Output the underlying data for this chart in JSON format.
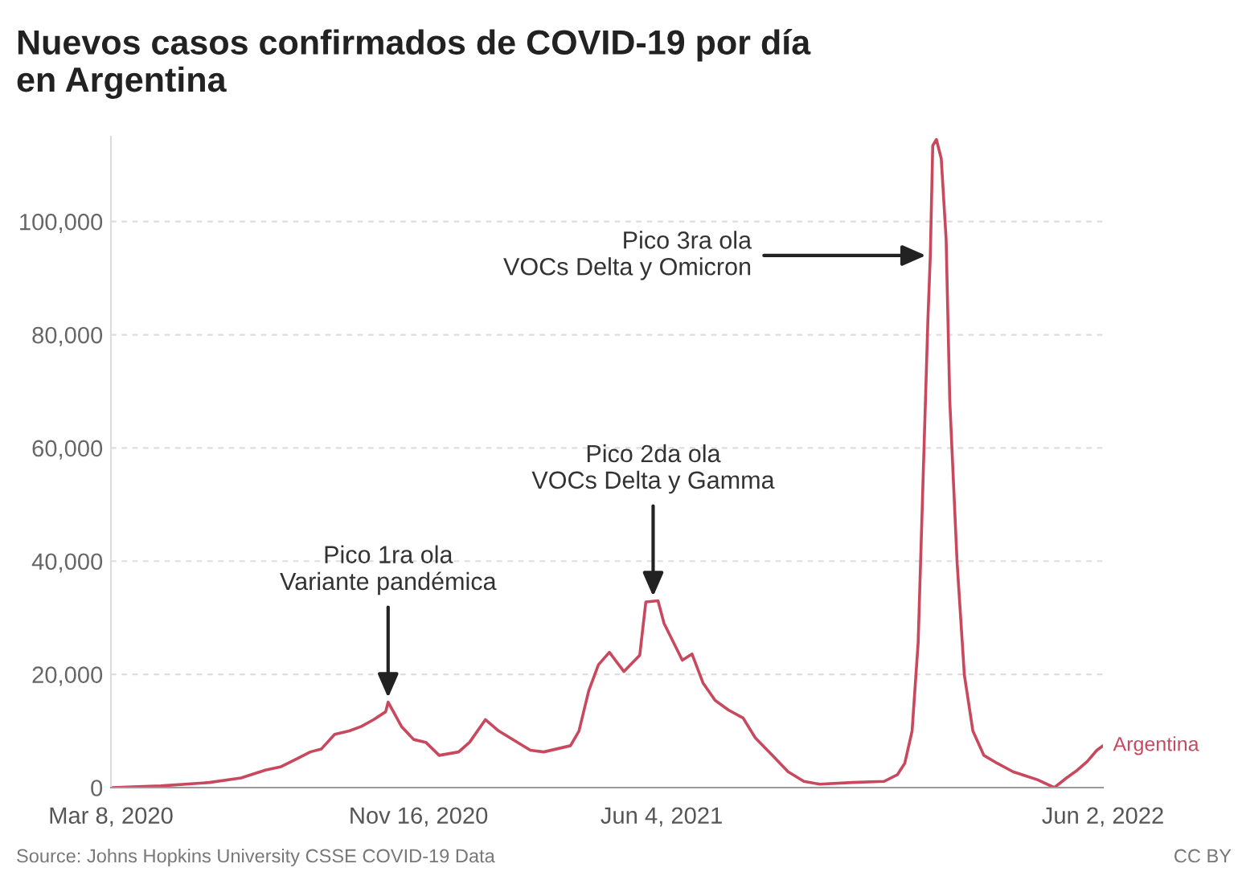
{
  "chart_data": {
    "type": "line",
    "title": "Nuevos casos confirmados de COVID-19 por día\nen Argentina",
    "x": [
      "2020-03-08",
      "2020-04-18",
      "2020-05-28",
      "2020-06-23",
      "2020-07-13",
      "2020-07-26",
      "2020-08-08",
      "2020-08-19",
      "2020-08-28",
      "2020-09-08",
      "2020-09-20",
      "2020-09-30",
      "2020-10-10",
      "2020-10-20",
      "2020-10-22",
      "2020-11-02",
      "2020-11-12",
      "2020-11-22",
      "2020-12-03",
      "2020-12-19",
      "2020-12-28",
      "2021-01-10",
      "2021-01-21",
      "2021-02-03",
      "2021-02-16",
      "2021-02-27",
      "2021-03-21",
      "2021-03-28",
      "2021-04-05",
      "2021-04-13",
      "2021-04-22",
      "2021-05-04",
      "2021-05-17",
      "2021-05-22",
      "2021-06-01",
      "2021-06-06",
      "2021-06-21",
      "2021-06-29",
      "2021-07-08",
      "2021-07-18",
      "2021-07-29",
      "2021-08-10",
      "2021-08-20",
      "2021-09-03",
      "2021-09-16",
      "2021-09-29",
      "2021-10-12",
      "2021-11-08",
      "2021-12-04",
      "2021-12-15",
      "2021-12-21",
      "2021-12-27",
      "2022-01-01",
      "2022-01-05",
      "2022-01-09",
      "2022-01-11",
      "2022-01-13",
      "2022-01-16",
      "2022-01-20",
      "2022-01-24",
      "2022-01-27",
      "2022-02-02",
      "2022-02-08",
      "2022-02-15",
      "2022-02-24",
      "2022-03-07",
      "2022-03-20",
      "2022-04-09",
      "2022-04-23",
      "2022-05-03",
      "2022-05-12",
      "2022-05-20",
      "2022-05-28",
      "2022-06-02"
    ],
    "series": [
      {
        "name": "Argentina",
        "color": "#c8485e",
        "values": [
          0,
          300,
          900,
          1700,
          3100,
          3700,
          5100,
          6300,
          6800,
          9400,
          10000,
          10800,
          12000,
          13400,
          15100,
          10800,
          8500,
          8000,
          5700,
          6300,
          8000,
          12000,
          10000,
          8300,
          6600,
          6300,
          7400,
          10000,
          17100,
          21700,
          23900,
          20500,
          23400,
          32800,
          33000,
          29000,
          22500,
          23600,
          18500,
          15400,
          13700,
          12300,
          8800,
          5700,
          2800,
          1100,
          600,
          900,
          1100,
          2300,
          4300,
          10000,
          25600,
          54100,
          82600,
          94000,
          113400,
          114500,
          111100,
          96900,
          68400,
          39900,
          19900,
          10000,
          5700,
          4300,
          2800,
          1400,
          0,
          1700,
          3100,
          4600,
          6600,
          7400
        ]
      }
    ],
    "xlim": [
      "2020-03-08",
      "2022-06-02"
    ],
    "xticks": [
      {
        "value": "2020-03-08",
        "label": "Mar 8, 2020"
      },
      {
        "value": "2020-11-16",
        "label": "Nov 16, 2020"
      },
      {
        "value": "2021-06-04",
        "label": "Jun 4, 2021"
      },
      {
        "value": "2022-06-02",
        "label": "Jun 2, 2022"
      }
    ],
    "yticks": [
      0,
      {
        "value": 20000,
        "label": "20,000"
      },
      {
        "value": 40000,
        "label": "40,000"
      },
      {
        "value": 60000,
        "label": "60,000"
      },
      {
        "value": 80000,
        "label": "80,000"
      },
      {
        "value": 100000,
        "label": "100,000"
      }
    ],
    "ylim": [
      0,
      115000
    ],
    "grid": "y",
    "legend": false,
    "annotations": [
      {
        "text": "Pico 1ra ola\nVariante pandémica",
        "x": "2020-10-22",
        "y": 15100
      },
      {
        "text": "Pico 2da ola\nVOCs Delta y Gamma",
        "x": "2021-05-28",
        "y": 33000
      },
      {
        "text": "Pico 3ra ola\nVOCs Delta y Omicron",
        "x": "2022-01-11",
        "y": 94000
      },
      "Source: Johns Hopkins University CSSE COVID-19 Data",
      "CC BY"
    ]
  }
}
